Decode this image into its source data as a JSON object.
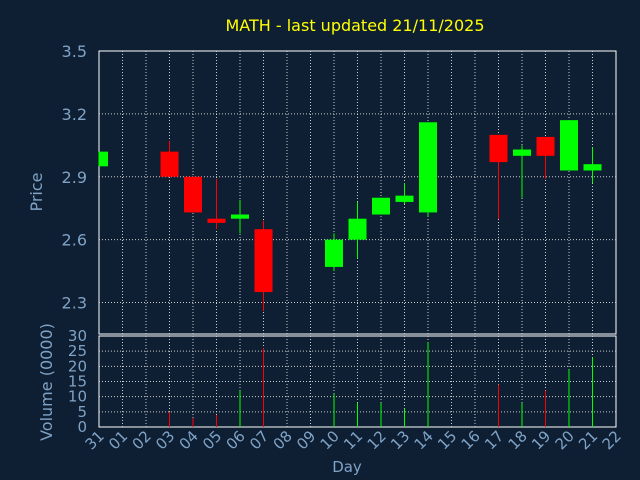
{
  "chart_data": {
    "type": "candlestick",
    "title": "MATH - last updated 21/11/2025",
    "xlabel": "Day",
    "price_panel": {
      "ylabel": "Price",
      "ylim": [
        2.15,
        3.5
      ],
      "yticks": [
        "2.3",
        "2.6",
        "2.9",
        "3.2",
        "3.5"
      ],
      "ytick_values": [
        2.3,
        2.6,
        2.9,
        3.2,
        3.5
      ]
    },
    "volume_panel": {
      "ylabel": "Volume (0000)",
      "ylim": [
        0,
        30
      ],
      "yticks": [
        "0",
        "5",
        "10",
        "15",
        "20",
        "25",
        "30"
      ],
      "ytick_values": [
        0,
        5,
        10,
        15,
        20,
        25,
        30
      ]
    },
    "x_ticks": [
      "31",
      "01",
      "02",
      "03",
      "04",
      "05",
      "06",
      "07",
      "08",
      "09",
      "10",
      "11",
      "12",
      "13",
      "14",
      "15",
      "16",
      "17",
      "18",
      "19",
      "20",
      "21",
      "22"
    ],
    "candles": [
      {
        "day": "31",
        "open": 2.95,
        "high": 3.02,
        "low": 2.95,
        "close": 3.02,
        "volume": 0
      },
      {
        "day": "03",
        "open": 3.02,
        "high": 3.07,
        "low": 2.9,
        "close": 2.9,
        "volume": 5
      },
      {
        "day": "04",
        "open": 2.9,
        "high": 2.9,
        "low": 2.73,
        "close": 2.73,
        "volume": 3
      },
      {
        "day": "05",
        "open": 2.7,
        "high": 2.89,
        "low": 2.65,
        "close": 2.68,
        "volume": 4
      },
      {
        "day": "06",
        "open": 2.7,
        "high": 2.79,
        "low": 2.63,
        "close": 2.72,
        "volume": 12
      },
      {
        "day": "07",
        "open": 2.65,
        "high": 2.69,
        "low": 2.26,
        "close": 2.35,
        "volume": 26
      },
      {
        "day": "10",
        "open": 2.47,
        "high": 2.63,
        "low": 2.45,
        "close": 2.6,
        "volume": 11
      },
      {
        "day": "11",
        "open": 2.6,
        "high": 2.78,
        "low": 2.51,
        "close": 2.7,
        "volume": 8
      },
      {
        "day": "12",
        "open": 2.72,
        "high": 2.8,
        "low": 2.72,
        "close": 2.8,
        "volume": 8
      },
      {
        "day": "13",
        "open": 2.78,
        "high": 2.87,
        "low": 2.77,
        "close": 2.81,
        "volume": 6
      },
      {
        "day": "14",
        "open": 2.73,
        "high": 3.16,
        "low": 2.71,
        "close": 3.16,
        "volume": 28
      },
      {
        "day": "17",
        "open": 3.1,
        "high": 3.1,
        "low": 2.7,
        "close": 2.97,
        "volume": 14
      },
      {
        "day": "18",
        "open": 3.0,
        "high": 3.05,
        "low": 2.8,
        "close": 3.03,
        "volume": 8
      },
      {
        "day": "19",
        "open": 3.09,
        "high": 3.09,
        "low": 2.89,
        "close": 3.0,
        "volume": 12
      },
      {
        "day": "20",
        "open": 2.93,
        "high": 3.17,
        "low": 2.93,
        "close": 3.17,
        "volume": 19
      },
      {
        "day": "21",
        "open": 2.93,
        "high": 3.04,
        "low": 2.87,
        "close": 2.96,
        "volume": 23
      }
    ],
    "colors": {
      "background": "#0f1f33",
      "text": "#7fa3c6",
      "title": "#ffff00",
      "grid": "#cccccc",
      "up": "#00ff00",
      "down": "#ff0000",
      "axis": "#ffffff"
    }
  }
}
